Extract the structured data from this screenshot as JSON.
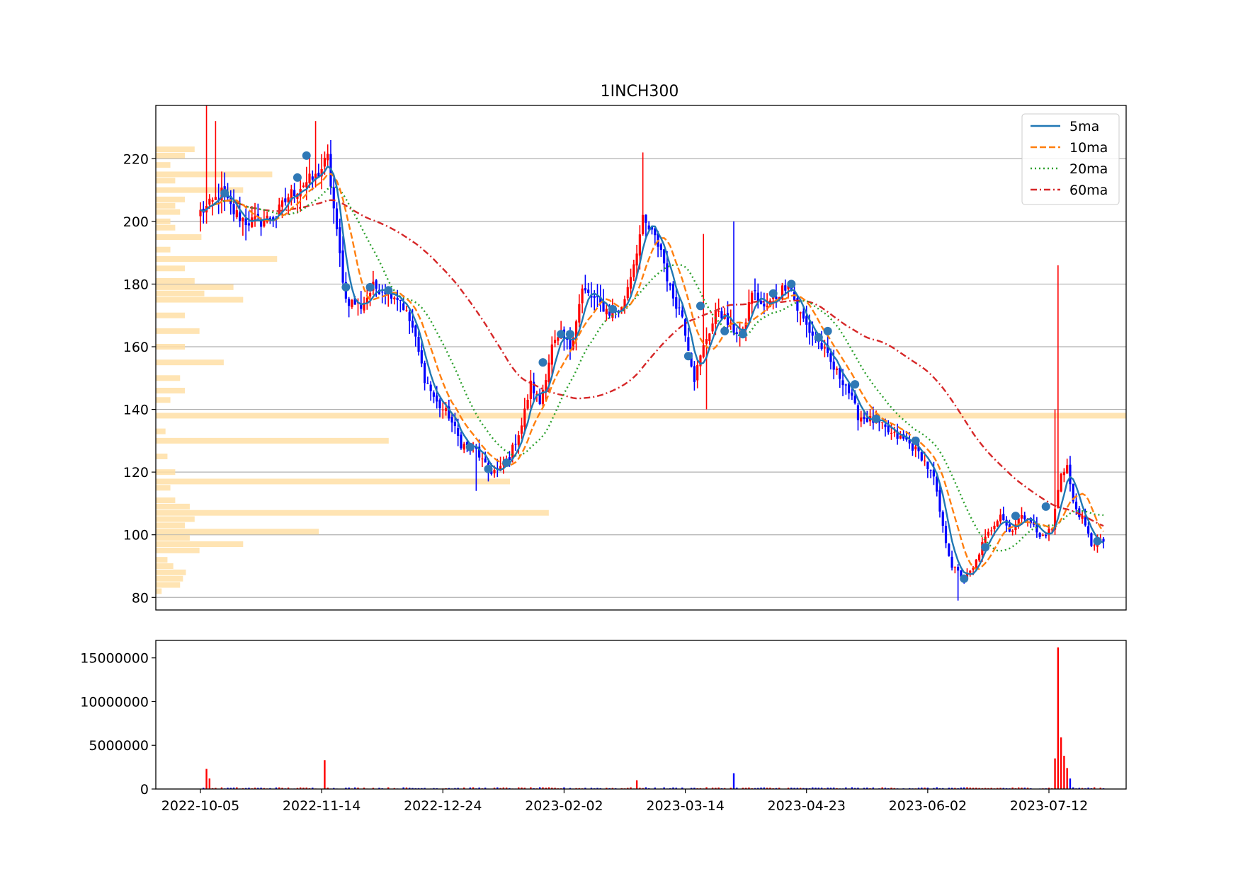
{
  "chart_data": {
    "type": "candlestick",
    "title": "1INCH300",
    "xlabel": "",
    "ylabel": "",
    "date_range": [
      "2022-10-05",
      "2023-07-30"
    ],
    "x_ticks": [
      "2022-10-05",
      "2022-11-14",
      "2022-12-24",
      "2023-02-02",
      "2023-03-14",
      "2023-04-23",
      "2023-06-02",
      "2023-07-12"
    ],
    "price_axis": {
      "ylim": [
        76,
        237
      ],
      "ticks": [
        80,
        100,
        120,
        140,
        160,
        180,
        200,
        220
      ]
    },
    "volume_axis": {
      "ylim": [
        0,
        17000000
      ],
      "ticks": [
        0,
        5000000,
        10000000,
        15000000
      ]
    },
    "grid": "horizontal",
    "legend_position": "top-right",
    "colors": {
      "up": "#ff0000",
      "down": "#0000ff",
      "ma5": "#1f77b4",
      "ma10": "#ff7f0e",
      "ma20": "#2ca02c",
      "ma60": "#d62728",
      "profile": "#ffdfa6",
      "marker": "#2f78b6"
    },
    "legend": [
      "5ma",
      "10ma",
      "20ma",
      "60ma"
    ],
    "close_anchors": [
      [
        "2022-10-05",
        203
      ],
      [
        "2022-10-08",
        205
      ],
      [
        "2022-10-12",
        209
      ],
      [
        "2022-10-16",
        203
      ],
      [
        "2022-10-20",
        200
      ],
      [
        "2022-10-25",
        200
      ],
      [
        "2022-10-30",
        202
      ],
      [
        "2022-11-03",
        208
      ],
      [
        "2022-11-08",
        212
      ],
      [
        "2022-11-12",
        214
      ],
      [
        "2022-11-16",
        220
      ],
      [
        "2022-11-19",
        196
      ],
      [
        "2022-11-22",
        175
      ],
      [
        "2022-11-27",
        173
      ],
      [
        "2022-12-01",
        179
      ],
      [
        "2022-12-06",
        178
      ],
      [
        "2022-12-10",
        175
      ],
      [
        "2022-12-14",
        166
      ],
      [
        "2022-12-18",
        150
      ],
      [
        "2022-12-22",
        142
      ],
      [
        "2022-12-26",
        138
      ],
      [
        "2022-12-30",
        129
      ],
      [
        "2023-01-04",
        127
      ],
      [
        "2023-01-08",
        120
      ],
      [
        "2023-01-12",
        121
      ],
      [
        "2023-01-15",
        125
      ],
      [
        "2023-01-19",
        135
      ],
      [
        "2023-01-22",
        148
      ],
      [
        "2023-01-25",
        142
      ],
      [
        "2023-01-29",
        160
      ],
      [
        "2023-02-01",
        163
      ],
      [
        "2023-02-04",
        160
      ],
      [
        "2023-02-08",
        178
      ],
      [
        "2023-02-12",
        175
      ],
      [
        "2023-02-17",
        171
      ],
      [
        "2023-02-21",
        172
      ],
      [
        "2023-02-25",
        187
      ],
      [
        "2023-02-28",
        200
      ],
      [
        "2023-03-03",
        196
      ],
      [
        "2023-03-06",
        191
      ],
      [
        "2023-03-09",
        178
      ],
      [
        "2023-03-13",
        170
      ],
      [
        "2023-03-17",
        150
      ],
      [
        "2023-03-21",
        163
      ],
      [
        "2023-03-25",
        172
      ],
      [
        "2023-03-29",
        166
      ],
      [
        "2023-04-02",
        164
      ],
      [
        "2023-04-05",
        178
      ],
      [
        "2023-04-09",
        172
      ],
      [
        "2023-04-13",
        176
      ],
      [
        "2023-04-17",
        181
      ],
      [
        "2023-04-20",
        172
      ],
      [
        "2023-04-24",
        165
      ],
      [
        "2023-04-28",
        160
      ],
      [
        "2023-05-02",
        153
      ],
      [
        "2023-05-06",
        148
      ],
      [
        "2023-05-10",
        138
      ],
      [
        "2023-05-16",
        136
      ],
      [
        "2023-05-21",
        132
      ],
      [
        "2023-05-26",
        130
      ],
      [
        "2023-05-31",
        125
      ],
      [
        "2023-06-04",
        118
      ],
      [
        "2023-06-07",
        102
      ],
      [
        "2023-06-10",
        90
      ],
      [
        "2023-06-14",
        86
      ],
      [
        "2023-06-17",
        89
      ],
      [
        "2023-06-20",
        97
      ],
      [
        "2023-06-23",
        102
      ],
      [
        "2023-06-26",
        107
      ],
      [
        "2023-06-29",
        101
      ],
      [
        "2023-07-02",
        105
      ],
      [
        "2023-07-05",
        106
      ],
      [
        "2023-07-09",
        99
      ],
      [
        "2023-07-13",
        102
      ],
      [
        "2023-07-16",
        120
      ],
      [
        "2023-07-18",
        122
      ],
      [
        "2023-07-20",
        110
      ],
      [
        "2023-07-23",
        105
      ],
      [
        "2023-07-26",
        97
      ],
      [
        "2023-07-30",
        98
      ]
    ],
    "volume_spikes": [
      [
        "2022-10-07",
        2300000
      ],
      [
        "2022-10-08",
        1200000
      ],
      [
        "2022-11-15",
        3300000
      ],
      [
        "2023-02-26",
        1000000
      ],
      [
        "2023-03-30",
        1800000
      ],
      [
        "2023-07-14",
        3500000
      ],
      [
        "2023-07-15",
        16200000
      ],
      [
        "2023-07-16",
        5900000
      ],
      [
        "2023-07-17",
        3800000
      ],
      [
        "2023-07-18",
        2400000
      ],
      [
        "2023-07-19",
        1200000
      ]
    ],
    "volume_profile": [
      [
        82,
        0.6
      ],
      [
        84,
        2.5
      ],
      [
        86,
        2.8
      ],
      [
        88,
        3.1
      ],
      [
        90,
        1.8
      ],
      [
        92,
        1.2
      ],
      [
        95,
        4.5
      ],
      [
        97,
        9.0
      ],
      [
        99,
        3.5
      ],
      [
        101,
        16.8
      ],
      [
        103,
        3.0
      ],
      [
        105,
        4.0
      ],
      [
        107,
        40.5
      ],
      [
        109,
        3.5
      ],
      [
        111,
        2.0
      ],
      [
        115,
        1.5
      ],
      [
        117,
        36.5
      ],
      [
        120,
        2.0
      ],
      [
        125,
        1.2
      ],
      [
        130,
        24.0
      ],
      [
        133,
        1.0
      ],
      [
        138,
        100.0
      ],
      [
        143,
        1.5
      ],
      [
        146,
        3.0
      ],
      [
        150,
        2.5
      ],
      [
        155,
        7.0
      ],
      [
        160,
        3.0
      ],
      [
        165,
        4.5
      ],
      [
        170,
        3.0
      ],
      [
        175,
        9.0
      ],
      [
        177,
        5.0
      ],
      [
        179,
        8.0
      ],
      [
        181,
        4.0
      ],
      [
        185,
        3.0
      ],
      [
        188,
        12.5
      ],
      [
        191,
        1.5
      ],
      [
        195,
        4.7
      ],
      [
        198,
        2.0
      ],
      [
        200,
        1.5
      ],
      [
        203,
        2.5
      ],
      [
        205,
        2.0
      ],
      [
        207,
        3.0
      ],
      [
        210,
        9.0
      ],
      [
        213,
        2.0
      ],
      [
        215,
        12.0
      ],
      [
        218,
        1.5
      ],
      [
        221,
        3.0
      ],
      [
        223,
        4.0
      ]
    ],
    "markers": [
      [
        "2022-11-09",
        221
      ],
      [
        "2022-11-06",
        214
      ],
      [
        "2022-10-13",
        209
      ],
      [
        "2022-11-22",
        179
      ],
      [
        "2022-11-30",
        179
      ],
      [
        "2022-12-06",
        178
      ],
      [
        "2023-01-02",
        128
      ],
      [
        "2023-01-08",
        121
      ],
      [
        "2023-01-14",
        123
      ],
      [
        "2023-01-26",
        155
      ],
      [
        "2023-02-01",
        164
      ],
      [
        "2023-02-04",
        164
      ],
      [
        "2023-02-18",
        172
      ],
      [
        "2023-03-15",
        157
      ],
      [
        "2023-03-19",
        173
      ],
      [
        "2023-03-27",
        165
      ],
      [
        "2023-04-02",
        164
      ],
      [
        "2023-04-12",
        177
      ],
      [
        "2023-04-18",
        180
      ],
      [
        "2023-04-27",
        163
      ],
      [
        "2023-04-30",
        165
      ],
      [
        "2023-05-09",
        148
      ],
      [
        "2023-05-16",
        137
      ],
      [
        "2023-05-29",
        130
      ],
      [
        "2023-06-14",
        86
      ],
      [
        "2023-06-21",
        96
      ],
      [
        "2023-07-01",
        106
      ],
      [
        "2023-07-11",
        109
      ],
      [
        "2023-07-28",
        98
      ]
    ]
  }
}
